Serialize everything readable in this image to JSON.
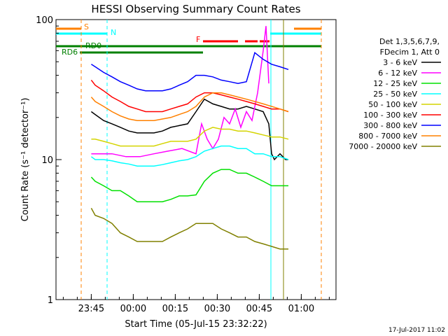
{
  "chart_data": {
    "type": "line",
    "title": "HESSI Observing Summary Count Rates",
    "xlabel": "Start Time (05-Jul-15 23:32:22)",
    "ylabel": "Count Rate (s⁻¹ detector⁻¹)",
    "ylog": true,
    "ylim": [
      1,
      100
    ],
    "xlim_minutes_from_start": [
      0,
      100
    ],
    "x_tick_labels": [
      "23:45",
      "00:00",
      "00:15",
      "00:30",
      "00:45",
      "01:00"
    ],
    "x_tick_minutes": [
      12.6,
      27.6,
      42.6,
      57.6,
      72.6,
      87.6
    ],
    "y_tick_labels": [
      "1",
      "10",
      "100"
    ],
    "y_tick_values": [
      1,
      10,
      100
    ],
    "grid": false,
    "legend_position": "right",
    "legend_header": [
      "Det 1,3,5,6,7,9,",
      "FDecim 1, Att 0"
    ],
    "series": [
      {
        "name": "3 - 6 keV",
        "color": "#000000",
        "x": [
          12.6,
          14,
          17,
          20,
          23,
          26,
          29,
          32,
          35,
          38,
          41,
          44,
          47,
          50,
          53,
          56,
          59,
          62,
          65,
          68,
          71,
          74,
          76,
          77,
          78,
          80,
          82,
          83
        ],
        "values": [
          22,
          21,
          19,
          18,
          17,
          16,
          15.5,
          15.5,
          15.5,
          16,
          17,
          17.5,
          18,
          22,
          27,
          25,
          24,
          23,
          23,
          24,
          23,
          22,
          18,
          11,
          10,
          11,
          10,
          10
        ]
      },
      {
        "name": "6 - 12 keV",
        "color": "#ff00ff",
        "x": [
          12.6,
          15,
          20,
          25,
          30,
          35,
          40,
          45,
          50,
          52,
          54,
          56,
          58,
          60,
          62,
          64,
          66,
          68,
          70,
          72,
          74,
          75,
          76
        ],
        "values": [
          11,
          11,
          11,
          10.5,
          10.5,
          11,
          11.5,
          12,
          11,
          18,
          14,
          12,
          14,
          20,
          18,
          23,
          17,
          22,
          19,
          30,
          60,
          90,
          35
        ]
      },
      {
        "name": "12 - 25 keV",
        "color": "#00e000",
        "x": [
          12.6,
          14,
          17,
          20,
          23,
          26,
          29,
          32,
          35,
          38,
          41,
          44,
          47,
          50,
          53,
          56,
          59,
          62,
          65,
          68,
          71,
          74,
          77,
          80,
          83
        ],
        "values": [
          7.5,
          7,
          6.5,
          6,
          6,
          5.5,
          5,
          5,
          5,
          5,
          5.2,
          5.5,
          5.5,
          5.6,
          7,
          8,
          8.5,
          8.5,
          8,
          8,
          7.5,
          7,
          6.5,
          6.5,
          6.5
        ]
      },
      {
        "name": "25 - 50 keV",
        "color": "#00ffff",
        "x": [
          12.6,
          14,
          17,
          20,
          23,
          26,
          29,
          32,
          35,
          38,
          41,
          44,
          47,
          50,
          53,
          56,
          59,
          62,
          65,
          68,
          71,
          74,
          77,
          80,
          83
        ],
        "values": [
          10.5,
          10,
          10,
          9.8,
          9.5,
          9.3,
          9,
          9,
          9,
          9.2,
          9.5,
          9.8,
          10,
          10.5,
          11.5,
          12,
          12.5,
          12.5,
          12,
          12,
          11,
          11,
          10.5,
          10.5,
          10
        ]
      },
      {
        "name": "50 - 100 keV",
        "color": "#d4d400",
        "x": [
          12.6,
          14,
          17,
          20,
          23,
          26,
          29,
          32,
          35,
          38,
          41,
          44,
          47,
          50,
          53,
          56,
          59,
          62,
          65,
          68,
          71,
          74,
          77,
          80,
          83
        ],
        "values": [
          14,
          14,
          13.5,
          13,
          12.5,
          12.5,
          12.5,
          12.5,
          12.5,
          13,
          13.5,
          13.5,
          13.5,
          14,
          16,
          17,
          16.5,
          16.5,
          16,
          16,
          15.5,
          15,
          14.5,
          14.5,
          14
        ]
      },
      {
        "name": "100 - 300 keV",
        "color": "#ff0000",
        "x": [
          12.6,
          14,
          17,
          20,
          23,
          26,
          29,
          32,
          35,
          38,
          41,
          44,
          47,
          50,
          53,
          56,
          59,
          62,
          65,
          68,
          71,
          74,
          77,
          80,
          83
        ],
        "values": [
          37,
          34,
          31,
          28,
          26,
          24,
          23,
          22,
          22,
          22,
          23,
          24,
          25,
          28,
          30,
          30,
          29,
          28,
          27,
          26,
          25,
          24,
          23,
          23,
          22
        ]
      },
      {
        "name": "300 - 800 keV",
        "color": "#0000ff",
        "x": [
          12.6,
          14,
          17,
          20,
          23,
          26,
          29,
          32,
          35,
          38,
          41,
          44,
          47,
          50,
          53,
          56,
          59,
          62,
          65,
          68,
          71,
          74,
          77,
          80,
          83
        ],
        "values": [
          48,
          46,
          42,
          39,
          36,
          34,
          32,
          31,
          31,
          31,
          32,
          34,
          36,
          40,
          40,
          39,
          37,
          36,
          35,
          36,
          58,
          52,
          48,
          46,
          44
        ]
      },
      {
        "name": "800 - 7000 keV",
        "color": "#ff8000",
        "x": [
          12.6,
          14,
          17,
          20,
          23,
          26,
          29,
          32,
          35,
          38,
          41,
          44,
          47,
          50,
          53,
          56,
          59,
          62,
          65,
          68,
          71,
          74,
          77,
          80,
          83
        ],
        "values": [
          28,
          26,
          24,
          22,
          20.5,
          19.5,
          19,
          19,
          19,
          19.5,
          20,
          21,
          22,
          24,
          28,
          30,
          30,
          29,
          28,
          27,
          26,
          25,
          24,
          23,
          22
        ]
      },
      {
        "name": "7000 - 20000 keV",
        "color": "#808000",
        "x": [
          12.6,
          14,
          17,
          20,
          23,
          26,
          29,
          32,
          35,
          38,
          41,
          44,
          47,
          50,
          53,
          56,
          59,
          62,
          65,
          68,
          71,
          74,
          77,
          80,
          83
        ],
        "values": [
          4.5,
          4,
          3.8,
          3.5,
          3,
          2.8,
          2.6,
          2.6,
          2.6,
          2.6,
          2.8,
          3,
          3.2,
          3.5,
          3.5,
          3.5,
          3.2,
          3,
          2.8,
          2.8,
          2.6,
          2.5,
          2.4,
          2.3,
          2.3
        ]
      }
    ],
    "annotations": {
      "state_labels": [
        "S",
        "N",
        "RD0",
        "RD6",
        "F"
      ],
      "timestamp": "17-Jul-2017 11:02"
    },
    "colors": {
      "S": "#ff8000",
      "N": "#00ffff",
      "RD0": "#008000",
      "RD6": "#008000",
      "F": "#ff0000"
    }
  }
}
